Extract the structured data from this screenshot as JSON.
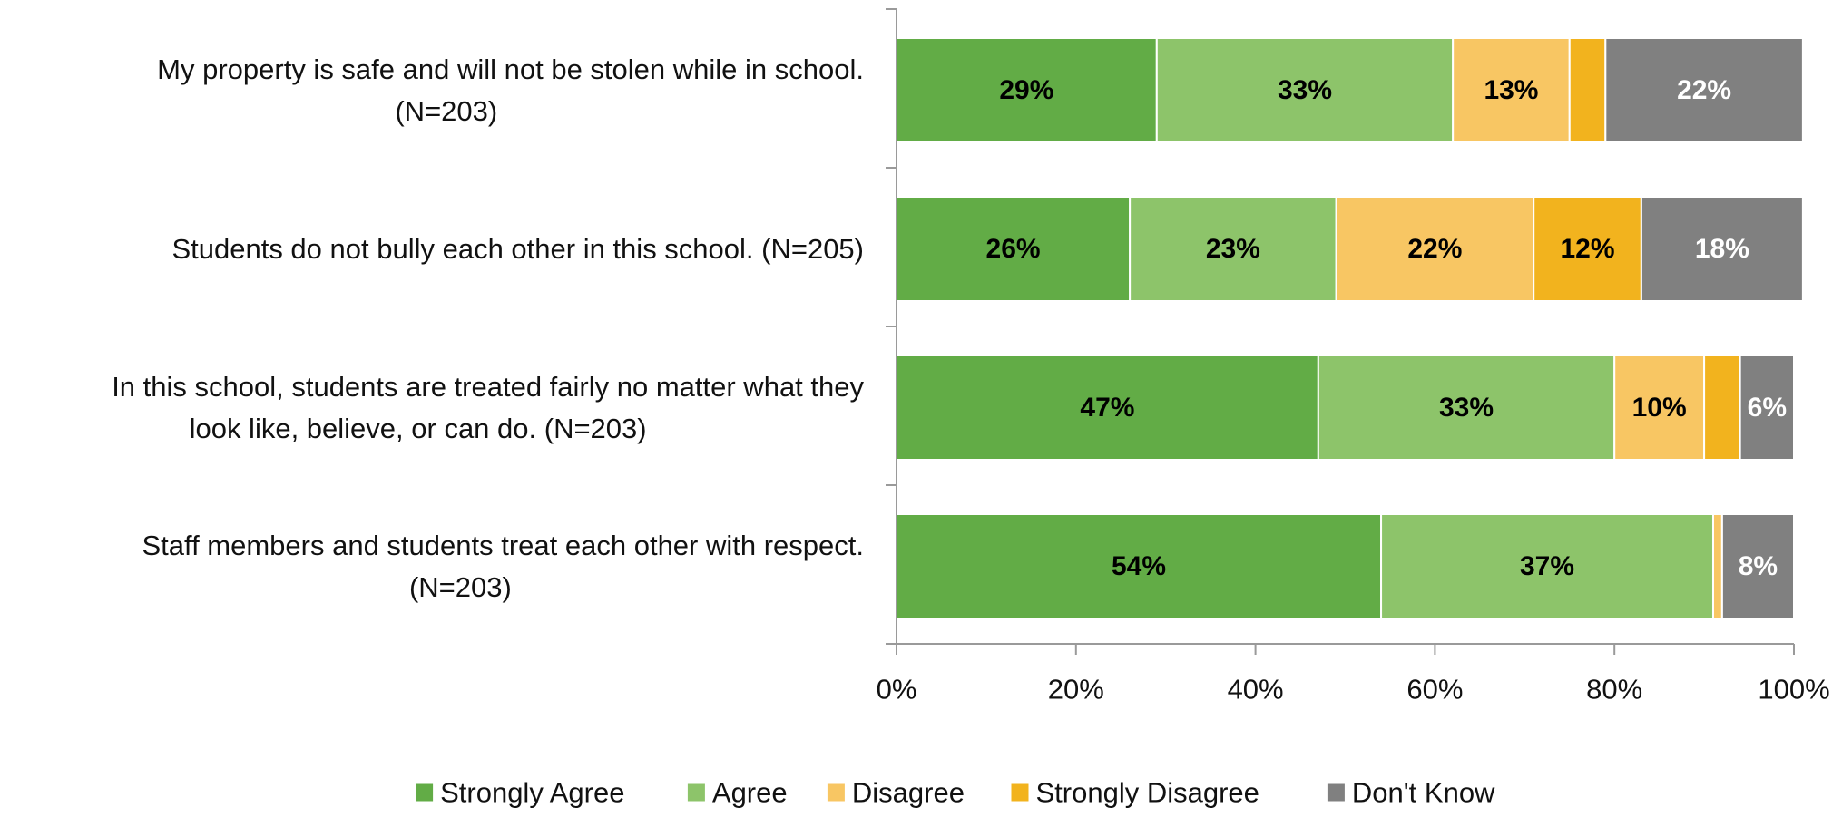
{
  "chart_data": {
    "type": "bar",
    "orientation": "horizontal",
    "stacked": true,
    "title": "",
    "xlabel": "",
    "ylabel": "",
    "xlim": [
      0,
      100
    ],
    "x_ticks": [
      "0%",
      "20%",
      "40%",
      "60%",
      "80%",
      "100%"
    ],
    "grid": false,
    "legend_position": "bottom",
    "categories": [
      {
        "lines": [
          "My property is safe and will not be stolen while in school.",
          "(N=203)"
        ]
      },
      {
        "lines": [
          "Students do not bully each other in this school. (N=205)"
        ]
      },
      {
        "lines": [
          "In this school, students are treated fairly no matter what they",
          "look like, believe, or can do. (N=203)"
        ]
      },
      {
        "lines": [
          "Staff members and students treat each other with respect.",
          "(N=203)"
        ]
      }
    ],
    "series": [
      {
        "name": "Strongly Agree",
        "color": "#62AC46",
        "label_color": "#000000",
        "values": [
          29,
          26,
          47,
          54
        ],
        "labels": [
          "29%",
          "26%",
          "47%",
          "54%"
        ]
      },
      {
        "name": "Agree",
        "color": "#8DC46A",
        "label_color": "#000000",
        "values": [
          33,
          23,
          33,
          37
        ],
        "labels": [
          "33%",
          "23%",
          "33%",
          "37%"
        ]
      },
      {
        "name": "Disagree",
        "color": "#F8C663",
        "label_color": "#000000",
        "values": [
          13,
          22,
          10,
          1
        ],
        "labels": [
          "13%",
          "22%",
          "10%",
          ""
        ]
      },
      {
        "name": "Strongly Disagree",
        "color": "#F2B31E",
        "label_color": "#000000",
        "values": [
          4,
          12,
          4,
          0
        ],
        "labels": [
          "",
          "12%",
          "",
          ""
        ]
      },
      {
        "name": "Don't Know",
        "color": "#808080",
        "label_color": "#ffffff",
        "values": [
          22,
          18,
          6,
          8
        ],
        "labels": [
          "22%",
          "18%",
          "6%",
          "8%"
        ]
      }
    ]
  }
}
